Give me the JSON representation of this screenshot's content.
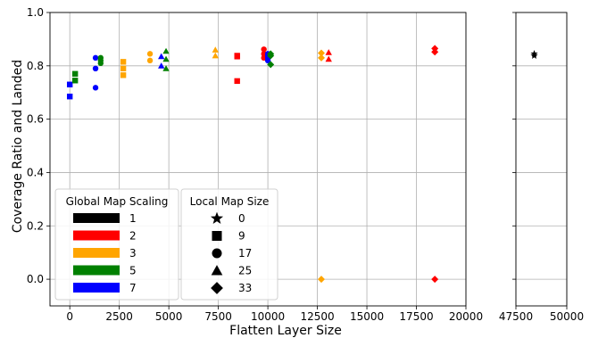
{
  "chart_data": {
    "type": "scatter",
    "xlabel": "Flatten Layer Size",
    "ylabel": "Coverage Ratio and Landed",
    "ylim": [
      -0.1,
      1.0
    ],
    "yticks": [
      "0.0",
      "0.2",
      "0.4",
      "0.6",
      "0.8",
      "1.0"
    ],
    "yticks_values": [
      0.0,
      0.2,
      0.4,
      0.6,
      0.8,
      1.0
    ],
    "grid": true,
    "panels": [
      {
        "xlim": [
          -1000,
          20000
        ],
        "xticks_values": [
          0,
          2500,
          5000,
          7500,
          10000,
          12500,
          15000,
          17500,
          20000
        ],
        "xticks": [
          "0",
          "2500",
          "5000",
          "7500",
          "10000",
          "12500",
          "15000",
          "17500",
          "20000"
        ]
      },
      {
        "xlim": [
          47500,
          50000
        ],
        "xticks_values": [
          47500,
          50000
        ],
        "xticks": [
          "47500",
          "50000"
        ]
      }
    ],
    "color_legend": {
      "title": "Global Map Scaling",
      "placement": "lower-left",
      "entries": [
        {
          "label": "1",
          "color": "#000000"
        },
        {
          "label": "2",
          "color": "#ff0000"
        },
        {
          "label": "3",
          "color": "#ffa500"
        },
        {
          "label": "5",
          "color": "#008000"
        },
        {
          "label": "7",
          "color": "#0000ff"
        }
      ]
    },
    "marker_legend": {
      "title": "Local Map Size",
      "entries": [
        {
          "label": "0",
          "marker": "star"
        },
        {
          "label": "9",
          "marker": "square"
        },
        {
          "label": "17",
          "marker": "circle"
        },
        {
          "label": "25",
          "marker": "triangle"
        },
        {
          "label": "33",
          "marker": "diamond"
        }
      ]
    },
    "points": [
      {
        "x": 0,
        "y": 0.73,
        "color": "#0000ff",
        "marker": "square"
      },
      {
        "x": 0,
        "y": 0.685,
        "color": "#0000ff",
        "marker": "square"
      },
      {
        "x": 270,
        "y": 0.77,
        "color": "#008000",
        "marker": "square"
      },
      {
        "x": 270,
        "y": 0.745,
        "color": "#008000",
        "marker": "square"
      },
      {
        "x": 1300,
        "y": 0.83,
        "color": "#0000ff",
        "marker": "circle"
      },
      {
        "x": 1300,
        "y": 0.79,
        "color": "#0000ff",
        "marker": "circle"
      },
      {
        "x": 1300,
        "y": 0.718,
        "color": "#0000ff",
        "marker": "circle"
      },
      {
        "x": 1560,
        "y": 0.83,
        "color": "#008000",
        "marker": "circle"
      },
      {
        "x": 1560,
        "y": 0.82,
        "color": "#008000",
        "marker": "circle"
      },
      {
        "x": 1560,
        "y": 0.81,
        "color": "#008000",
        "marker": "circle"
      },
      {
        "x": 2700,
        "y": 0.815,
        "color": "#ffa500",
        "marker": "square"
      },
      {
        "x": 2700,
        "y": 0.79,
        "color": "#ffa500",
        "marker": "square"
      },
      {
        "x": 2700,
        "y": 0.765,
        "color": "#ffa500",
        "marker": "square"
      },
      {
        "x": 4050,
        "y": 0.845,
        "color": "#ffa500",
        "marker": "circle"
      },
      {
        "x": 4050,
        "y": 0.82,
        "color": "#ffa500",
        "marker": "circle"
      },
      {
        "x": 4620,
        "y": 0.835,
        "color": "#0000ff",
        "marker": "triangle"
      },
      {
        "x": 4620,
        "y": 0.8,
        "color": "#0000ff",
        "marker": "triangle"
      },
      {
        "x": 4860,
        "y": 0.855,
        "color": "#008000",
        "marker": "triangle"
      },
      {
        "x": 4860,
        "y": 0.825,
        "color": "#008000",
        "marker": "triangle"
      },
      {
        "x": 4860,
        "y": 0.79,
        "color": "#008000",
        "marker": "triangle"
      },
      {
        "x": 7350,
        "y": 0.86,
        "color": "#ffa500",
        "marker": "triangle"
      },
      {
        "x": 7350,
        "y": 0.838,
        "color": "#ffa500",
        "marker": "triangle"
      },
      {
        "x": 8450,
        "y": 0.838,
        "color": "#ff0000",
        "marker": "square"
      },
      {
        "x": 8450,
        "y": 0.835,
        "color": "#ff0000",
        "marker": "square"
      },
      {
        "x": 8450,
        "y": 0.743,
        "color": "#ff0000",
        "marker": "square"
      },
      {
        "x": 9800,
        "y": 0.862,
        "color": "#ff0000",
        "marker": "circle"
      },
      {
        "x": 9800,
        "y": 0.845,
        "color": "#ff0000",
        "marker": "circle"
      },
      {
        "x": 9800,
        "y": 0.83,
        "color": "#ff0000",
        "marker": "circle"
      },
      {
        "x": 10000,
        "y": 0.845,
        "color": "#0000ff",
        "marker": "circle"
      },
      {
        "x": 10000,
        "y": 0.838,
        "color": "#0000ff",
        "marker": "circle"
      },
      {
        "x": 10000,
        "y": 0.83,
        "color": "#0000ff",
        "marker": "circle"
      },
      {
        "x": 10000,
        "y": 0.82,
        "color": "#0000ff",
        "marker": "circle"
      },
      {
        "x": 10140,
        "y": 0.845,
        "color": "#008000",
        "marker": "diamond"
      },
      {
        "x": 10140,
        "y": 0.838,
        "color": "#008000",
        "marker": "diamond"
      },
      {
        "x": 10140,
        "y": 0.805,
        "color": "#008000",
        "marker": "diamond"
      },
      {
        "x": 12700,
        "y": 0.848,
        "color": "#ffa500",
        "marker": "diamond"
      },
      {
        "x": 12700,
        "y": 0.83,
        "color": "#ffa500",
        "marker": "diamond"
      },
      {
        "x": 12700,
        "y": 0.0,
        "color": "#ffa500",
        "marker": "diamond"
      },
      {
        "x": 13070,
        "y": 0.85,
        "color": "#ff0000",
        "marker": "triangle"
      },
      {
        "x": 13070,
        "y": 0.825,
        "color": "#ff0000",
        "marker": "triangle"
      },
      {
        "x": 18430,
        "y": 0.865,
        "color": "#ff0000",
        "marker": "diamond"
      },
      {
        "x": 18430,
        "y": 0.852,
        "color": "#ff0000",
        "marker": "diamond"
      },
      {
        "x": 18430,
        "y": 0.0,
        "color": "#ff0000",
        "marker": "diamond"
      },
      {
        "x": 48400,
        "y": 0.845,
        "color": "#000000",
        "marker": "star"
      },
      {
        "x": 48400,
        "y": 0.838,
        "color": "#000000",
        "marker": "star"
      }
    ]
  }
}
